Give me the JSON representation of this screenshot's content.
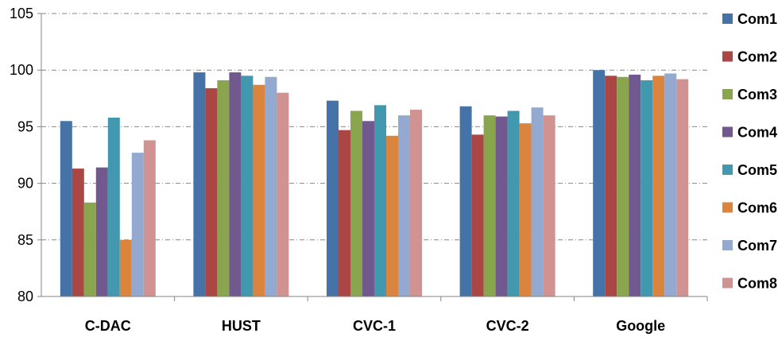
{
  "chart_data": {
    "type": "bar",
    "title": "",
    "xlabel": "",
    "ylabel": "",
    "ylim": [
      80,
      105
    ],
    "yticks": [
      80,
      85,
      90,
      95,
      100,
      105
    ],
    "grid": "horizontal dashed",
    "legend_position": "right",
    "categories": [
      "C-DAC",
      "HUST",
      "CVC-1",
      "CVC-2",
      "Google"
    ],
    "series": [
      {
        "name": "Com1",
        "color": "#4572A7",
        "values": [
          95.5,
          99.8,
          97.3,
          96.8,
          100.0
        ]
      },
      {
        "name": "Com2",
        "color": "#AA4643",
        "values": [
          91.3,
          98.4,
          94.7,
          94.3,
          99.5
        ]
      },
      {
        "name": "Com3",
        "color": "#89A54E",
        "values": [
          88.3,
          99.1,
          96.4,
          96.0,
          99.4
        ]
      },
      {
        "name": "Com4",
        "color": "#71588F",
        "values": [
          91.4,
          99.8,
          95.5,
          95.9,
          99.6
        ]
      },
      {
        "name": "Com5",
        "color": "#4198AF",
        "values": [
          95.8,
          99.5,
          96.9,
          96.4,
          99.1
        ]
      },
      {
        "name": "Com6",
        "color": "#DB843D",
        "values": [
          85.0,
          98.7,
          94.2,
          95.3,
          99.5
        ]
      },
      {
        "name": "Com7",
        "color": "#93A9CF",
        "values": [
          92.7,
          99.4,
          96.0,
          96.7,
          99.7
        ]
      },
      {
        "name": "Com8",
        "color": "#D19392",
        "values": [
          93.8,
          98.0,
          96.5,
          96.0,
          99.2
        ]
      }
    ]
  }
}
